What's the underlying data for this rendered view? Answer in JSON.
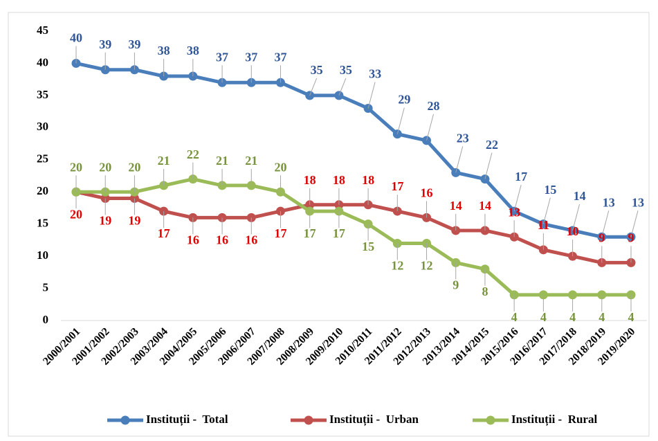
{
  "chart_data": {
    "type": "line",
    "categories": [
      "2000/2001",
      "2001/2002",
      "2002/2003",
      "2003/2004",
      "2004/2005",
      "2005/2006",
      "2006/2007",
      "2007/2008",
      "2008/2009",
      "2009/2010",
      "2010/2011",
      "2011/2012",
      "2012/2013",
      "2013/2014",
      "2014/2015",
      "2015/2016",
      "2016/2017",
      "2017/2018",
      "2018/2019",
      "2019/2020"
    ],
    "series": [
      {
        "name": "Instituții -  Total",
        "color": "#4a7ebb",
        "label_color": "#2f5597",
        "values": [
          40,
          39,
          39,
          38,
          38,
          37,
          37,
          37,
          35,
          35,
          33,
          29,
          28,
          23,
          22,
          17,
          15,
          14,
          13,
          13
        ]
      },
      {
        "name": "Instituții -  Urban",
        "color": "#c0504d",
        "label_color": "#e00000",
        "values": [
          20,
          19,
          19,
          17,
          16,
          16,
          16,
          17,
          18,
          18,
          18,
          17,
          16,
          14,
          14,
          13,
          11,
          10,
          9,
          9
        ]
      },
      {
        "name": "Instituții -  Rural",
        "color": "#9bbb59",
        "label_color": "#77933c",
        "values": [
          20,
          20,
          20,
          21,
          22,
          21,
          21,
          20,
          17,
          17,
          15,
          12,
          12,
          9,
          8,
          4,
          4,
          4,
          4,
          4
        ]
      }
    ],
    "ylim": [
      0,
      45
    ],
    "yticks": [
      0,
      5,
      10,
      15,
      20,
      25,
      30,
      35,
      40,
      45
    ],
    "grid": false,
    "legend": "bottom"
  }
}
